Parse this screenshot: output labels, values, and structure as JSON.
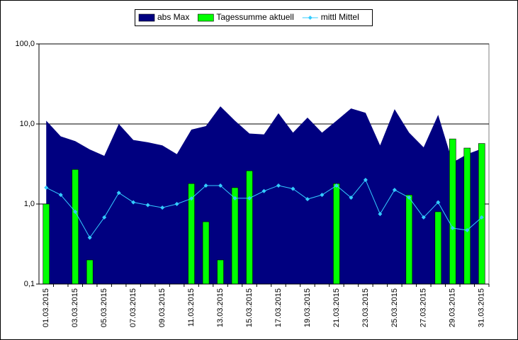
{
  "chart_data": {
    "type": "area-bar-line",
    "categories": [
      "01.03.2015",
      null,
      "03.03.2015",
      null,
      "05.03.2015",
      null,
      "07.03.2015",
      null,
      "09.03.2015",
      null,
      "11.03.2015",
      null,
      "13.03.2015",
      null,
      "15.03.2015",
      null,
      "17.03.2015",
      null,
      "19.03.2015",
      null,
      "21.03.2015",
      null,
      "23.03.2015",
      null,
      "25.03.2015",
      null,
      "27.03.2015",
      null,
      "29.03.2015",
      null,
      "31.03.2015"
    ],
    "series": [
      {
        "name": "abs Max",
        "type": "area",
        "color": "#000080",
        "values": [
          11,
          7,
          6.1,
          4.8,
          4.0,
          10,
          6.3,
          5.9,
          5.4,
          4.2,
          8.5,
          9.4,
          16.6,
          11,
          7.6,
          7.4,
          13.6,
          7.8,
          12,
          7.8,
          11,
          15.6,
          13.8,
          5.4,
          15.3,
          7.8,
          5.1,
          13,
          3.3,
          4.2,
          4.9
        ]
      },
      {
        "name": "Tagessumme aktuell",
        "type": "bar",
        "color": "#00ff00",
        "values": [
          1.0,
          null,
          2.7,
          0.2,
          null,
          null,
          null,
          null,
          null,
          null,
          1.8,
          0.6,
          0.2,
          1.6,
          2.6,
          null,
          null,
          null,
          null,
          null,
          1.8,
          null,
          null,
          null,
          null,
          1.3,
          null,
          0.8,
          6.5,
          5.0,
          5.7
        ]
      },
      {
        "name": "mittl Mittel",
        "type": "line",
        "color": "#33ccff",
        "values": [
          1.6,
          1.3,
          0.8,
          0.38,
          0.68,
          1.38,
          1.05,
          0.97,
          0.9,
          1.0,
          1.17,
          1.7,
          1.7,
          1.18,
          1.18,
          1.45,
          1.7,
          1.55,
          1.15,
          1.3,
          1.7,
          1.2,
          2.0,
          0.75,
          1.5,
          1.2,
          0.68,
          1.05,
          0.5,
          0.47,
          0.68
        ]
      }
    ],
    "log_y": true,
    "ylim": [
      0.1,
      100
    ],
    "yticks": [
      {
        "value": 0.1,
        "label": "0,1"
      },
      {
        "value": 1,
        "label": "1,0"
      },
      {
        "value": 10,
        "label": "10,0"
      },
      {
        "value": 100,
        "label": "100,0"
      }
    ],
    "grid": true,
    "legend": "top"
  }
}
